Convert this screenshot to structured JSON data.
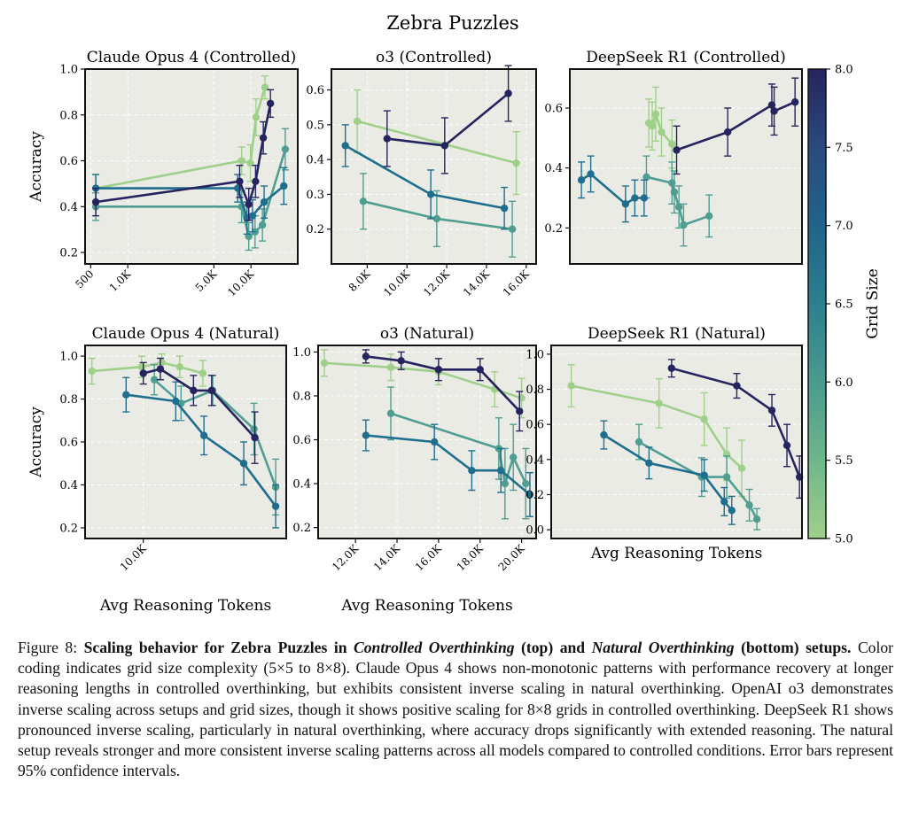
{
  "figure_title": "Zebra Puzzles",
  "chart_data": [
    {
      "type": "line",
      "title": "Claude Opus 4 (Controlled)",
      "xscale": "log",
      "xlim": [
        450,
        24000
      ],
      "ylim": [
        0.15,
        1.0
      ],
      "xticks": [
        500,
        1000,
        5000,
        10000
      ],
      "xticklabels": [
        "500",
        "1.0K",
        "5.0K",
        "10.0K"
      ],
      "yticks": [
        0.2,
        0.4,
        0.6,
        0.8,
        1.0
      ],
      "yticklabels": [
        "0.2",
        "0.4",
        "0.6",
        "0.8",
        "1.0"
      ],
      "ylabel": "Accuracy",
      "xlabel": "",
      "series": [
        {
          "name": "Grid 5x5",
          "grid": 5,
          "x": [
            550,
            8400,
            9900,
            11000,
            13000
          ],
          "y": [
            0.48,
            0.6,
            0.59,
            0.79,
            0.92
          ],
          "err": [
            0.06,
            0.06,
            0.08,
            0.08,
            0.05
          ]
        },
        {
          "name": "Grid 6x6",
          "grid": 6,
          "x": [
            550,
            8400,
            9600,
            10800,
            12400,
            19000
          ],
          "y": [
            0.4,
            0.4,
            0.27,
            0.29,
            0.32,
            0.65
          ],
          "err": [
            0.06,
            0.07,
            0.06,
            0.07,
            0.07,
            0.09
          ]
        },
        {
          "name": "Grid 7x7",
          "grid": 7,
          "x": [
            550,
            7800,
            9300,
            10300,
            12800,
            18500
          ],
          "y": [
            0.48,
            0.48,
            0.35,
            0.36,
            0.42,
            0.49
          ],
          "err": [
            0.06,
            0.06,
            0.07,
            0.07,
            0.07,
            0.08
          ]
        },
        {
          "name": "Grid 8x8",
          "grid": 8,
          "x": [
            550,
            8100,
            9600,
            10900,
            12600,
            14400
          ],
          "y": [
            0.42,
            0.51,
            0.41,
            0.51,
            0.7,
            0.85
          ],
          "err": [
            0.06,
            0.07,
            0.07,
            0.07,
            0.07,
            0.06
          ]
        }
      ]
    },
    {
      "type": "line",
      "title": "o3 (Controlled)",
      "xscale": "linear",
      "xlim": [
        6200,
        16500
      ],
      "ylim": [
        0.1,
        0.66
      ],
      "xticks": [
        8000,
        10000,
        12000,
        14000,
        16000
      ],
      "xticklabels": [
        "8.0K",
        "10.0K",
        "12.0K",
        "14.0K",
        "16.0K"
      ],
      "yticks": [
        0.2,
        0.3,
        0.4,
        0.5,
        0.6
      ],
      "yticklabels": [
        "0.2",
        "0.3",
        "0.4",
        "0.5",
        "0.6"
      ],
      "ylabel": "",
      "xlabel": "",
      "series": [
        {
          "name": "Grid 5x5",
          "grid": 5,
          "x": [
            7500,
            15500
          ],
          "y": [
            0.51,
            0.39
          ],
          "err": [
            0.09,
            0.09
          ]
        },
        {
          "name": "Grid 6x6",
          "grid": 6,
          "x": [
            7800,
            11500,
            15300
          ],
          "y": [
            0.28,
            0.23,
            0.2
          ],
          "err": [
            0.08,
            0.08,
            0.08
          ]
        },
        {
          "name": "Grid 7x7",
          "grid": 7,
          "x": [
            6900,
            11200,
            14900
          ],
          "y": [
            0.44,
            0.3,
            0.26
          ],
          "err": [
            0.06,
            0.07,
            0.06
          ]
        },
        {
          "name": "Grid 8x8",
          "grid": 8,
          "x": [
            9000,
            11900,
            15100
          ],
          "y": [
            0.46,
            0.44,
            0.59
          ],
          "err": [
            0.08,
            0.08,
            0.08
          ]
        }
      ]
    },
    {
      "type": "line",
      "title": "DeepSeek R1 (Controlled)",
      "xscale": "linear",
      "xlim": [
        0,
        100
      ],
      "ylim": [
        0.08,
        0.73
      ],
      "xticks": [],
      "xticklabels": [],
      "yticks": [
        0.2,
        0.4,
        0.6
      ],
      "yticklabels": [
        "0.2",
        "0.4",
        "0.6"
      ],
      "ylabel": "",
      "xlabel": "",
      "series": [
        {
          "name": "Grid 5x5",
          "grid": 5,
          "x": [
            34,
            35.5,
            37,
            39.5,
            44
          ],
          "y": [
            0.55,
            0.54,
            0.58,
            0.52,
            0.48
          ],
          "err": [
            0.08,
            0.08,
            0.09,
            0.08,
            0.08
          ]
        },
        {
          "name": "Grid 6x6",
          "grid": 6,
          "x": [
            33,
            44,
            45,
            47,
            49,
            60
          ],
          "y": [
            0.37,
            0.35,
            0.32,
            0.27,
            0.21,
            0.24
          ],
          "err": [
            0.07,
            0.07,
            0.07,
            0.07,
            0.07,
            0.07
          ]
        },
        {
          "name": "Grid 7x7",
          "grid": 7,
          "x": [
            5,
            9,
            24,
            28,
            32
          ],
          "y": [
            0.36,
            0.38,
            0.28,
            0.3,
            0.3
          ],
          "err": [
            0.06,
            0.06,
            0.06,
            0.06,
            0.06
          ]
        },
        {
          "name": "Grid 8x8",
          "grid": 8,
          "x": [
            46,
            68,
            87,
            88,
            97
          ],
          "y": [
            0.46,
            0.52,
            0.61,
            0.59,
            0.62
          ],
          "err": [
            0.08,
            0.08,
            0.07,
            0.08,
            0.08
          ]
        }
      ]
    },
    {
      "type": "line",
      "title": "Claude Opus 4 (Natural)",
      "xscale": "log",
      "xlim": [
        7000,
        24000
      ],
      "ylim": [
        0.15,
        1.05
      ],
      "xticks": [
        10000
      ],
      "xticklabels": [
        "10.0K"
      ],
      "yticks": [
        0.2,
        0.4,
        0.6,
        0.8,
        1.0
      ],
      "yticklabels": [
        "0.2",
        "0.4",
        "0.6",
        "0.8",
        "1.0"
      ],
      "ylabel": "Accuracy",
      "xlabel": "Avg Reasoning Tokens",
      "series": [
        {
          "name": "Grid 5x5",
          "grid": 5,
          "x": [
            7300,
            9900,
            11200,
            12500,
            14400
          ],
          "y": [
            0.93,
            0.95,
            0.97,
            0.95,
            0.92
          ],
          "err": [
            0.06,
            0.05,
            0.04,
            0.05,
            0.06
          ]
        },
        {
          "name": "Grid 6x6",
          "grid": 6,
          "x": [
            10700,
            12600,
            15300,
            19700,
            22500
          ],
          "y": [
            0.89,
            0.78,
            0.84,
            0.66,
            0.39
          ],
          "err": [
            0.07,
            0.08,
            0.07,
            0.12,
            0.13
          ]
        },
        {
          "name": "Grid 7x7",
          "grid": 7,
          "x": [
            9000,
            12200,
            14500,
            18500,
            22500
          ],
          "y": [
            0.82,
            0.79,
            0.63,
            0.5,
            0.3
          ],
          "err": [
            0.08,
            0.09,
            0.09,
            0.1,
            0.1
          ]
        },
        {
          "name": "Grid 8x8",
          "grid": 8,
          "x": [
            10000,
            11100,
            13600,
            15200,
            19800
          ],
          "y": [
            0.92,
            0.94,
            0.84,
            0.84,
            0.62
          ],
          "err": [
            0.05,
            0.05,
            0.07,
            0.07,
            0.12
          ]
        }
      ]
    },
    {
      "type": "line",
      "title": "o3 (Natural)",
      "xscale": "linear",
      "xlim": [
        10200,
        20700
      ],
      "ylim": [
        0.15,
        1.03
      ],
      "xticks": [
        12000,
        14000,
        16000,
        18000,
        20000
      ],
      "xticklabels": [
        "12.0K",
        "14.0K",
        "16.0K",
        "18.0K",
        "20.0K"
      ],
      "yticks": [
        0.2,
        0.4,
        0.6,
        0.8,
        1.0
      ],
      "yticklabels": [
        "0.2",
        "0.4",
        "0.6",
        "0.8",
        "1.0"
      ],
      "ylabel": "",
      "xlabel": "Avg Reasoning Tokens",
      "series": [
        {
          "name": "Grid 5x5",
          "grid": 5,
          "x": [
            10500,
            13700,
            16000,
            18700,
            20000
          ],
          "y": [
            0.95,
            0.93,
            0.91,
            0.83,
            0.79
          ],
          "err": [
            0.06,
            0.06,
            0.06,
            0.08,
            0.09
          ]
        },
        {
          "name": "Grid 6x6",
          "grid": 6,
          "x": [
            13700,
            18900,
            19200,
            19600,
            20200
          ],
          "y": [
            0.72,
            0.56,
            0.4,
            0.52,
            0.4
          ],
          "err": [
            0.12,
            0.14,
            0.16,
            0.15,
            0.16
          ]
        },
        {
          "name": "Grid 7x7",
          "grid": 7,
          "x": [
            12500,
            15800,
            17600,
            19000,
            20400
          ],
          "y": [
            0.62,
            0.59,
            0.46,
            0.46,
            0.35
          ],
          "err": [
            0.07,
            0.08,
            0.09,
            0.1,
            0.1
          ]
        },
        {
          "name": "Grid 8x8",
          "grid": 8,
          "x": [
            12500,
            14200,
            16000,
            18000,
            19900
          ],
          "y": [
            0.98,
            0.96,
            0.92,
            0.92,
            0.73
          ],
          "err": [
            0.03,
            0.04,
            0.05,
            0.05,
            0.09
          ]
        }
      ]
    },
    {
      "type": "line",
      "title": "DeepSeek R1 (Natural)",
      "xscale": "linear",
      "xlim": [
        0,
        100
      ],
      "ylim": [
        -0.05,
        1.05
      ],
      "xticks": [],
      "xticklabels": [],
      "yticks": [
        0.0,
        0.2,
        0.4,
        0.6,
        0.8,
        1.0
      ],
      "yticklabels": [
        "0.0",
        "0.2",
        "0.4",
        "0.6",
        "0.8",
        "1.0"
      ],
      "ylabel": "",
      "xlabel": "Avg Reasoning Tokens",
      "series": [
        {
          "name": "Grid 5x5",
          "grid": 5,
          "x": [
            8,
            43,
            61,
            70,
            76
          ],
          "y": [
            0.82,
            0.72,
            0.63,
            0.43,
            0.35
          ],
          "err": [
            0.12,
            0.14,
            0.15,
            0.15,
            0.16
          ]
        },
        {
          "name": "Grid 6x6",
          "grid": 6,
          "x": [
            35,
            60,
            70,
            79,
            82
          ],
          "y": [
            0.5,
            0.3,
            0.3,
            0.14,
            0.06
          ],
          "err": [
            0.1,
            0.11,
            0.12,
            0.09,
            0.06
          ]
        },
        {
          "name": "Grid 7x7",
          "grid": 7,
          "x": [
            21,
            39,
            61,
            69,
            72
          ],
          "y": [
            0.54,
            0.38,
            0.31,
            0.16,
            0.11
          ],
          "err": [
            0.08,
            0.09,
            0.09,
            0.08,
            0.08
          ]
        },
        {
          "name": "Grid 8x8",
          "grid": 8,
          "x": [
            48,
            74,
            88,
            94,
            99
          ],
          "y": [
            0.92,
            0.82,
            0.68,
            0.48,
            0.3
          ],
          "err": [
            0.05,
            0.07,
            0.09,
            0.12,
            0.12
          ]
        }
      ]
    }
  ],
  "colorbar": {
    "label": "Grid Size",
    "range": [
      5.0,
      8.0
    ],
    "ticks": [
      5.0,
      5.5,
      6.0,
      6.5,
      7.0,
      7.5,
      8.0
    ],
    "ticklabels": [
      "5.0",
      "5.5",
      "6.0",
      "6.5",
      "7.0",
      "7.5",
      "8.0"
    ],
    "colors": [
      "#9fd08a",
      "#4f9e91",
      "#1f6e8e",
      "#26245e"
    ],
    "color_stops": [
      "#9fd08a",
      "#6fb68b",
      "#4a9b8e",
      "#2c7f8f",
      "#216489",
      "#2a4a7d",
      "#26245e"
    ]
  },
  "caption": {
    "figure_label": "Figure 8:",
    "bold_lead": "Scaling behavior for Zebra Puzzles in",
    "italic_1": "Controlled Overthinking",
    "bold_mid": "(top) and",
    "italic_2": "Natural Overthinking",
    "bold_end": "(bottom) setups.",
    "body": "Color coding indicates grid size complexity (5×5 to 8×8). Claude Opus 4 shows non-monotonic patterns with performance recovery at longer reasoning lengths in controlled overthinking, but exhibits consistent inverse scaling in natural overthinking. OpenAI o3 demonstrates inverse scaling across setups and grid sizes, though it shows positive scaling for 8×8 grids in controlled overthinking. DeepSeek R1 shows pronounced inverse scaling, particularly in natural overthinking, where accuracy drops significantly with extended reasoning. The natural setup reveals stronger and more consistent inverse scaling patterns across all models compared to controlled conditions. Error bars represent 95% confidence intervals."
  }
}
